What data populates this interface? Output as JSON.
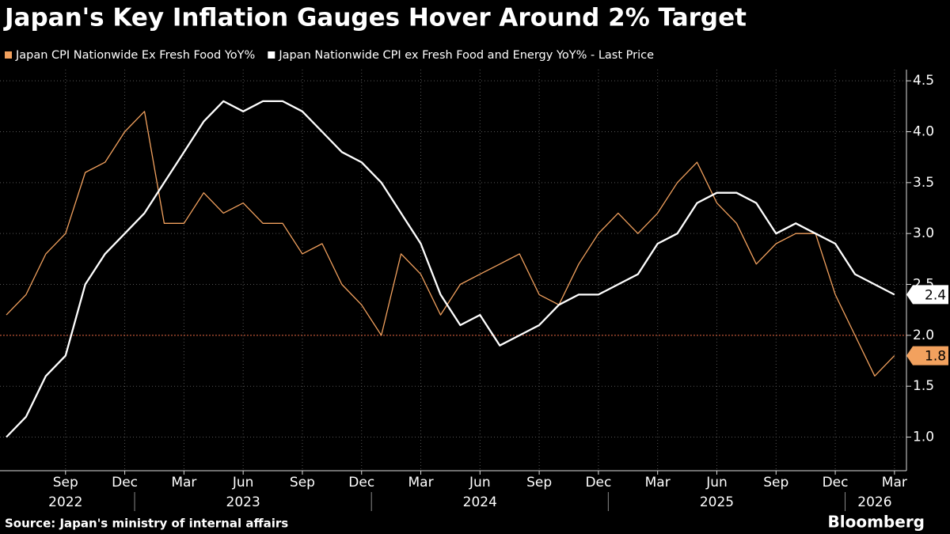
{
  "chart_data": {
    "type": "line",
    "title": "Japan's Key Inflation Gauges Hover Around 2% Target",
    "source": "Source: Japan's ministry of internal affairs",
    "brand": "Bloomberg",
    "x": [
      "2022-06",
      "2022-07",
      "2022-08",
      "2022-09",
      "2022-10",
      "2022-11",
      "2022-12",
      "2023-01",
      "2023-02",
      "2023-03",
      "2023-04",
      "2023-05",
      "2023-06",
      "2023-07",
      "2023-08",
      "2023-09",
      "2023-10",
      "2023-11",
      "2023-12",
      "2024-01",
      "2024-02",
      "2024-03",
      "2024-04",
      "2024-05",
      "2024-06",
      "2024-07",
      "2024-08",
      "2024-09",
      "2024-10",
      "2024-11",
      "2024-12",
      "2025-01",
      "2025-02",
      "2025-03",
      "2025-04",
      "2025-05",
      "2025-06",
      "2025-07",
      "2025-08",
      "2025-09",
      "2025-10",
      "2025-11",
      "2025-12",
      "2026-01",
      "2026-02",
      "2026-03"
    ],
    "series": [
      {
        "name": "Japan CPI Nationwide Ex Fresh Food YoY%",
        "color": "#f2a15e",
        "values": [
          2.2,
          2.4,
          2.8,
          3.0,
          3.6,
          3.7,
          4.0,
          4.2,
          3.1,
          3.1,
          3.4,
          3.2,
          3.3,
          3.1,
          3.1,
          2.8,
          2.9,
          2.5,
          2.3,
          2.0,
          2.8,
          2.6,
          2.2,
          2.5,
          2.6,
          2.7,
          2.8,
          2.4,
          2.3,
          2.7,
          3.0,
          3.2,
          3.0,
          3.2,
          3.5,
          3.7,
          3.3,
          3.1,
          2.7,
          2.9,
          3.0,
          3.0,
          2.4,
          2.0,
          1.6,
          1.8
        ]
      },
      {
        "name": "Japan Nationwide CPI ex Fresh Food and Energy YoY% - Last Price",
        "color": "#ffffff",
        "values": [
          1.0,
          1.2,
          1.6,
          1.8,
          2.5,
          2.8,
          3.0,
          3.2,
          3.5,
          3.8,
          4.1,
          4.3,
          4.2,
          4.3,
          4.3,
          4.2,
          4.0,
          3.8,
          3.7,
          3.5,
          3.2,
          2.9,
          2.4,
          2.1,
          2.2,
          1.9,
          2.0,
          2.1,
          2.3,
          2.4,
          2.4,
          2.5,
          2.6,
          2.9,
          3.0,
          3.3,
          3.4,
          3.4,
          3.3,
          3.0,
          3.1,
          3.0,
          2.9,
          2.6,
          2.5,
          2.4
        ]
      }
    ],
    "xticks": [
      {
        "value": "2022-09",
        "label": "Sep"
      },
      {
        "value": "2022-12",
        "label": "Dec"
      },
      {
        "value": "2023-03",
        "label": "Mar"
      },
      {
        "value": "2023-06",
        "label": "Jun"
      },
      {
        "value": "2023-09",
        "label": "Sep"
      },
      {
        "value": "2023-12",
        "label": "Dec"
      },
      {
        "value": "2024-03",
        "label": "Mar"
      },
      {
        "value": "2024-06",
        "label": "Jun"
      },
      {
        "value": "2024-09",
        "label": "Sep"
      },
      {
        "value": "2024-12",
        "label": "Dec"
      },
      {
        "value": "2025-03",
        "label": "Mar"
      },
      {
        "value": "2025-06",
        "label": "Jun"
      },
      {
        "value": "2025-09",
        "label": "Sep"
      },
      {
        "value": "2025-12",
        "label": "Dec"
      },
      {
        "value": "2026-03",
        "label": "Mar"
      }
    ],
    "year_labels": [
      {
        "value": "2022-09",
        "label": "2022"
      },
      {
        "value": "2023-06",
        "label": "2023"
      },
      {
        "value": "2024-06",
        "label": "2024"
      },
      {
        "value": "2025-06",
        "label": "2025"
      },
      {
        "value": "2026-02",
        "label": "2026"
      }
    ],
    "ylim": [
      0.67,
      4.61
    ],
    "yticks": [
      {
        "value": 1,
        "label": "1.0"
      },
      1.5,
      {
        "value": 2,
        "label": "2.0"
      },
      2.5,
      {
        "value": 3,
        "label": "3.0"
      },
      3.5,
      {
        "value": 4,
        "label": "4.0"
      },
      4.5
    ],
    "reference_line": 2,
    "grid": true
  }
}
